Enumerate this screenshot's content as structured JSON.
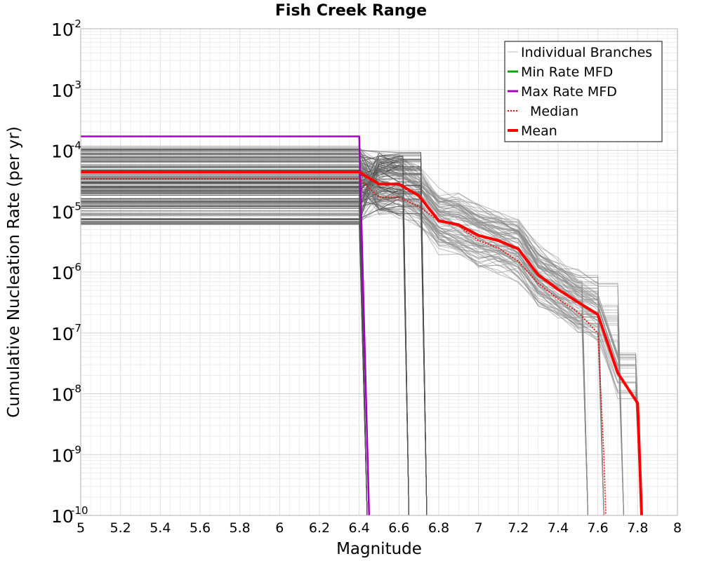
{
  "chart_data": {
    "type": "line",
    "title": "Fish Creek Range",
    "xlabel": "Magnitude",
    "ylabel": "Cumulative Nucleation Rate (per yr)",
    "xlim": [
      5,
      8
    ],
    "ylim": [
      1e-10,
      0.01
    ],
    "yscale": "log",
    "grid": true,
    "legend_position": "top-right",
    "x_ticks": [
      "5",
      "5.2",
      "5.4",
      "5.6",
      "5.8",
      "6",
      "6.2",
      "6.4",
      "6.6",
      "6.8",
      "7",
      "7.2",
      "7.4",
      "7.6",
      "7.8",
      "8"
    ],
    "y_ticks": [
      {
        "base": "10",
        "exp": "-2"
      },
      {
        "base": "10",
        "exp": "-3"
      },
      {
        "base": "10",
        "exp": "-4"
      },
      {
        "base": "10",
        "exp": "-5"
      },
      {
        "base": "10",
        "exp": "-6"
      },
      {
        "base": "10",
        "exp": "-7"
      },
      {
        "base": "10",
        "exp": "-8"
      },
      {
        "base": "10",
        "exp": "-9"
      },
      {
        "base": "10",
        "exp": "-10"
      }
    ],
    "legend": [
      {
        "label": "Individual Branches",
        "color": "#c8c8c8",
        "style": "thin"
      },
      {
        "label": "Min Rate MFD",
        "color": "#00aa00",
        "style": "solid"
      },
      {
        "label": "Max Rate MFD",
        "color": "#a000c0",
        "style": "solid"
      },
      {
        "label": "Median",
        "color": "#ff0000",
        "style": "dotted"
      },
      {
        "label": "Mean",
        "color": "#ff0000",
        "style": "thick"
      }
    ],
    "series": [
      {
        "name": "Max Rate MFD",
        "color": "#a000c0",
        "x": [
          5.0,
          6.4,
          6.45
        ],
        "y": [
          0.00017,
          0.00017,
          1e-10
        ]
      },
      {
        "name": "Min Rate MFD",
        "color": "#00aa00",
        "x": [],
        "y": []
      },
      {
        "name": "Median",
        "color": "#ff0000",
        "x": [
          5.0,
          6.4,
          6.5,
          6.6,
          6.7,
          6.8,
          6.9,
          7.0,
          7.1,
          7.2,
          7.3,
          7.4,
          7.5,
          7.6,
          7.63,
          7.64
        ],
        "y": [
          3.4e-05,
          3.4e-05,
          1.7e-05,
          1.7e-05,
          1.2e-05,
          7e-06,
          5.8e-06,
          3.3e-06,
          2.5e-06,
          1.5e-06,
          6.5e-07,
          3.6e-07,
          2.2e-07,
          1e-07,
          1e-09,
          1e-10
        ]
      },
      {
        "name": "Mean",
        "color": "#ff0000",
        "x": [
          5.0,
          6.4,
          6.5,
          6.6,
          6.7,
          6.8,
          6.9,
          7.0,
          7.1,
          7.2,
          7.3,
          7.4,
          7.5,
          7.6,
          7.7,
          7.8,
          7.82
        ],
        "y": [
          4.4e-05,
          4.4e-05,
          2.8e-05,
          2.8e-05,
          1.8e-05,
          7e-06,
          6e-06,
          4e-06,
          3.3e-06,
          2.4e-06,
          9e-07,
          5.2e-07,
          3.2e-07,
          2e-07,
          2.2e-08,
          7e-09,
          1e-10
        ]
      }
    ]
  }
}
